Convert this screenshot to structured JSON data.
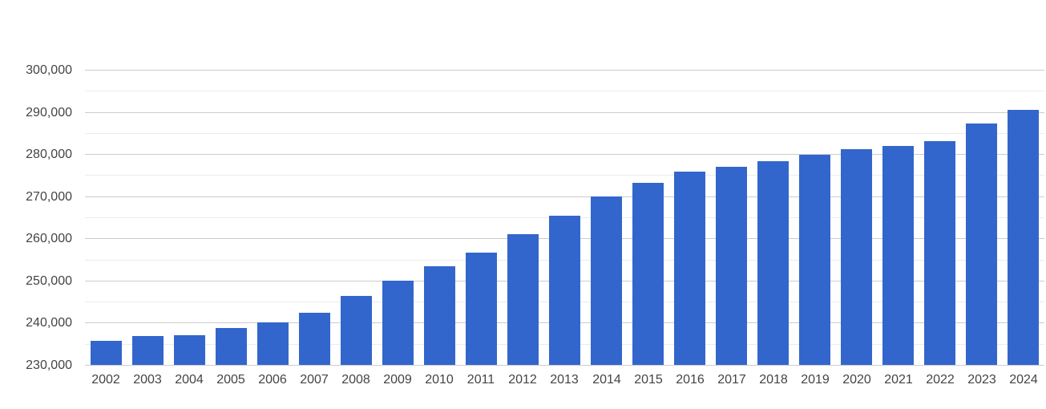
{
  "chart_data": {
    "type": "bar",
    "title": "",
    "xlabel": "",
    "ylabel": "",
    "legend": "none",
    "grid": true,
    "categories": [
      "2002",
      "2003",
      "2004",
      "2005",
      "2006",
      "2007",
      "2008",
      "2009",
      "2010",
      "2011",
      "2012",
      "2013",
      "2014",
      "2015",
      "2016",
      "2017",
      "2018",
      "2019",
      "2020",
      "2021",
      "2022",
      "2023",
      "2024"
    ],
    "values": [
      235800,
      236800,
      237000,
      238800,
      240000,
      242300,
      246300,
      250000,
      253400,
      256600,
      261100,
      265300,
      269900,
      273200,
      275900,
      277000,
      278400,
      279900,
      281100,
      281900,
      283000,
      287200,
      290400
    ],
    "ylim": [
      230000,
      300000
    ],
    "y_tick_step": 10000,
    "y_minor_step": 5000,
    "y_tick_labels": [
      "230,000",
      "240,000",
      "250,000",
      "260,000",
      "270,000",
      "280,000",
      "290,000",
      "300,000"
    ],
    "colors": {
      "bar": "#3366cc",
      "grid_major": "#cccccc",
      "grid_minor": "#ebebeb",
      "axis_label": "#444444",
      "background": "#ffffff"
    }
  }
}
